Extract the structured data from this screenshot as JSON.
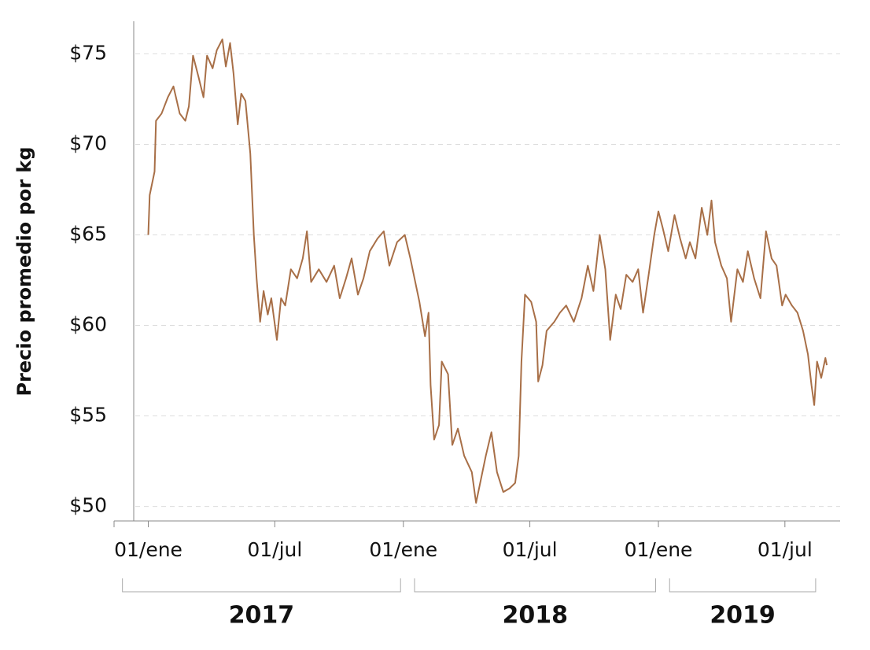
{
  "chart_data": {
    "type": "line",
    "y_label": "Precio promedio por kg",
    "series": [
      {
        "name": "Precio",
        "color": "#a86f47",
        "x": [
          "2017-01-01",
          "2017-01-03",
          "2017-01-10",
          "2017-01-12",
          "2017-01-20",
          "2017-01-29",
          "2017-02-06",
          "2017-02-15",
          "2017-02-23",
          "2017-02-28",
          "2017-03-06",
          "2017-03-14",
          "2017-03-21",
          "2017-03-26",
          "2017-04-03",
          "2017-04-09",
          "2017-04-17",
          "2017-04-22",
          "2017-04-28",
          "2017-05-03",
          "2017-05-09",
          "2017-05-14",
          "2017-05-20",
          "2017-05-27",
          "2017-06-01",
          "2017-06-05",
          "2017-06-10",
          "2017-06-15",
          "2017-06-21",
          "2017-06-26",
          "2017-07-04",
          "2017-07-10",
          "2017-07-16",
          "2017-07-24",
          "2017-08-02",
          "2017-08-10",
          "2017-08-16",
          "2017-08-22",
          "2017-09-02",
          "2017-09-13",
          "2017-09-24",
          "2017-10-02",
          "2017-10-11",
          "2017-10-19",
          "2017-10-28",
          "2017-11-05",
          "2017-11-14",
          "2017-11-25",
          "2017-12-04",
          "2017-12-12",
          "2017-12-23",
          "2018-01-03",
          "2018-01-11",
          "2018-01-18",
          "2018-01-24",
          "2018-02-01",
          "2018-02-06",
          "2018-02-09",
          "2018-02-14",
          "2018-02-21",
          "2018-02-25",
          "2018-03-06",
          "2018-03-12",
          "2018-03-20",
          "2018-03-29",
          "2018-04-09",
          "2018-04-15",
          "2018-04-22",
          "2018-04-29",
          "2018-05-07",
          "2018-05-15",
          "2018-05-24",
          "2018-06-02",
          "2018-06-10",
          "2018-06-15",
          "2018-06-19",
          "2018-06-24",
          "2018-07-03",
          "2018-07-10",
          "2018-07-13",
          "2018-07-19",
          "2018-07-25",
          "2018-08-05",
          "2018-08-13",
          "2018-08-22",
          "2018-09-02",
          "2018-09-13",
          "2018-09-22",
          "2018-09-30",
          "2018-10-09",
          "2018-10-17",
          "2018-10-24",
          "2018-11-01",
          "2018-11-08",
          "2018-11-16",
          "2018-11-25",
          "2018-12-03",
          "2018-12-10",
          "2018-12-18",
          "2018-12-26",
          "2019-01-01",
          "2019-01-07",
          "2019-01-15",
          "2019-01-24",
          "2019-02-01",
          "2019-02-09",
          "2019-02-15",
          "2019-02-23",
          "2019-03-04",
          "2019-03-12",
          "2019-03-18",
          "2019-03-23",
          "2019-04-01",
          "2019-04-09",
          "2019-04-15",
          "2019-04-24",
          "2019-05-02",
          "2019-05-09",
          "2019-05-18",
          "2019-05-27",
          "2019-06-04",
          "2019-06-12",
          "2019-06-19",
          "2019-06-27",
          "2019-07-02",
          "2019-07-11",
          "2019-07-19",
          "2019-07-27",
          "2019-08-03",
          "2019-08-08",
          "2019-08-12",
          "2019-08-16",
          "2019-08-22",
          "2019-08-28",
          "2019-08-30"
        ],
        "values": [
          65.0,
          67.2,
          68.5,
          71.3,
          71.7,
          72.6,
          73.2,
          71.7,
          71.3,
          72.1,
          74.9,
          73.7,
          72.6,
          74.9,
          74.2,
          75.2,
          75.8,
          74.3,
          75.6,
          73.9,
          71.1,
          72.8,
          72.4,
          69.5,
          65.0,
          62.6,
          60.2,
          61.9,
          60.6,
          61.5,
          59.2,
          61.5,
          61.1,
          63.1,
          62.6,
          63.7,
          65.2,
          62.4,
          63.1,
          62.4,
          63.3,
          61.5,
          62.6,
          63.7,
          61.7,
          62.6,
          64.1,
          64.8,
          65.2,
          63.3,
          64.6,
          65.0,
          63.7,
          62.4,
          61.3,
          59.4,
          60.7,
          56.7,
          53.7,
          54.5,
          58.0,
          57.3,
          53.4,
          54.3,
          52.8,
          51.9,
          50.2,
          51.5,
          52.8,
          54.1,
          51.9,
          50.8,
          51.0,
          51.3,
          52.8,
          58.0,
          61.7,
          61.3,
          60.2,
          56.9,
          57.8,
          59.7,
          60.2,
          60.7,
          61.1,
          60.2,
          61.5,
          63.3,
          61.9,
          65.0,
          63.1,
          59.2,
          61.7,
          60.9,
          62.8,
          62.4,
          63.1,
          60.7,
          62.8,
          65.0,
          66.3,
          65.4,
          64.1,
          66.1,
          64.8,
          63.7,
          64.6,
          63.7,
          66.5,
          65.0,
          66.9,
          64.6,
          63.3,
          62.6,
          60.2,
          63.1,
          62.4,
          64.1,
          62.6,
          61.5,
          65.2,
          63.7,
          63.3,
          61.1,
          61.7,
          61.1,
          60.7,
          59.7,
          58.4,
          56.7,
          55.6,
          58.0,
          57.1,
          58.2,
          57.8
        ]
      }
    ],
    "xlim": [
      "2016-11-13",
      "2019-09-18"
    ],
    "xticks": [
      {
        "value": "2017-01-01",
        "label": "01/ene"
      },
      {
        "value": "2017-07-01",
        "label": "01/jul"
      },
      {
        "value": "2018-01-01",
        "label": "01/ene"
      },
      {
        "value": "2018-07-01",
        "label": "01/jul"
      },
      {
        "value": "2019-01-01",
        "label": "01/ene"
      },
      {
        "value": "2019-07-01",
        "label": "01/jul"
      }
    ],
    "year_groups": [
      {
        "label": "2017",
        "start": "2016-11-25",
        "end": "2017-12-28"
      },
      {
        "label": "2018",
        "start": "2018-01-17",
        "end": "2018-12-28"
      },
      {
        "label": "2019",
        "start": "2019-01-17",
        "end": "2019-08-14"
      }
    ],
    "ylim": [
      49.2,
      76.8
    ],
    "yticks": [
      {
        "value": 50,
        "label": "$50"
      },
      {
        "value": 55,
        "label": "$55"
      },
      {
        "value": 60,
        "label": "$60"
      },
      {
        "value": 65,
        "label": "$65"
      },
      {
        "value": 70,
        "label": "$70"
      },
      {
        "value": 75,
        "label": "$75"
      }
    ],
    "grid": true
  }
}
